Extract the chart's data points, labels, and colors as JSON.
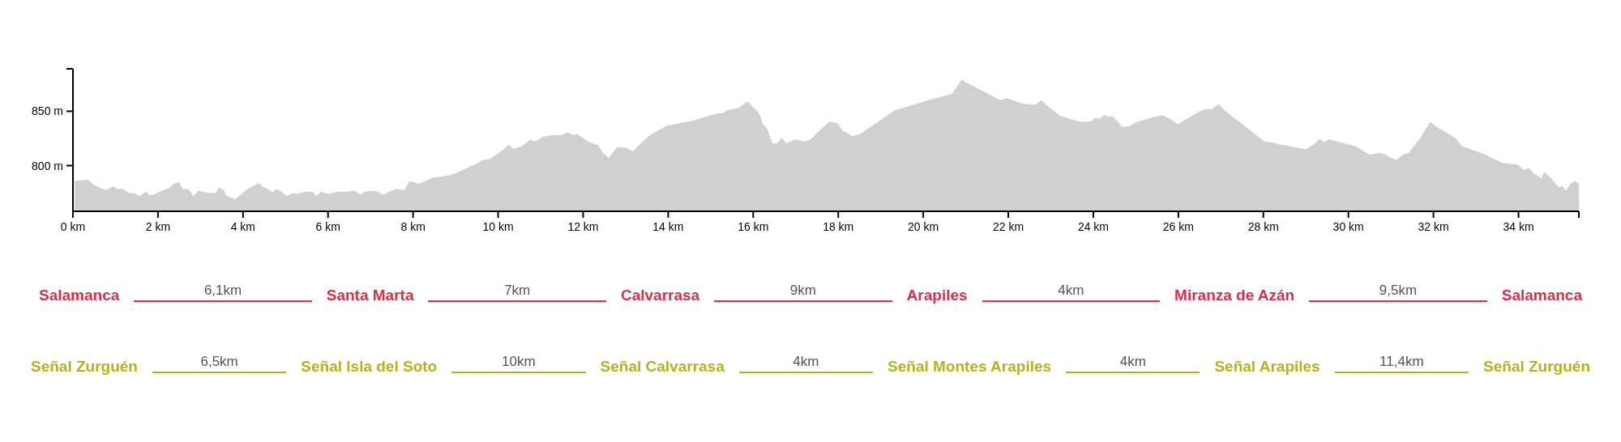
{
  "chart_data": {
    "type": "area",
    "color": "#d0d0d0",
    "x": [
      0.04,
      0.36,
      0.5,
      0.77,
      0.96,
      1.04,
      1.17,
      1.3,
      1.45,
      1.57,
      1.71,
      1.8,
      1.9,
      2.28,
      2.35,
      2.5,
      2.58,
      2.71,
      2.84,
      2.95,
      3.18,
      3.35,
      3.44,
      3.56,
      3.6,
      3.82,
      3.95,
      4.08,
      4.38,
      4.44,
      4.63,
      4.69,
      4.78,
      4.91,
      5.02,
      5.19,
      5.29,
      5.44,
      5.63,
      5.73,
      5.83,
      6.0,
      6.26,
      6.47,
      6.6,
      6.77,
      6.88,
      7.07,
      7.18,
      7.28,
      7.45,
      7.6,
      7.79,
      7.92,
      8.05,
      8.11,
      8.48,
      8.86,
      9.12,
      9.38,
      9.46,
      9.63,
      9.8,
      10.06,
      10.25,
      10.36,
      10.57,
      10.76,
      10.87,
      11.04,
      11.26,
      11.48,
      11.63,
      11.78,
      11.86,
      12.12,
      12.25,
      12.35,
      12.46,
      12.6,
      12.8,
      13.02,
      13.17,
      13.36,
      13.57,
      13.96,
      14.6,
      15.15,
      15.28,
      15.39,
      15.65,
      15.87,
      16.14,
      16.22,
      16.33,
      16.45,
      16.54,
      16.67,
      16.78,
      16.99,
      17.21,
      17.36,
      17.55,
      17.79,
      17.99,
      18.08,
      18.34,
      18.53,
      19.34,
      20.11,
      20.67,
      20.79,
      20.9,
      20.96,
      21.82,
      21.97,
      22.33,
      22.63,
      22.78,
      22.89,
      23.23,
      23.71,
      23.97,
      24.05,
      24.14,
      24.26,
      24.35,
      24.45,
      24.69,
      24.86,
      24.99,
      25.45,
      25.63,
      25.8,
      25.99,
      26.48,
      26.65,
      26.78,
      26.95,
      27.08,
      28.03,
      28.19,
      28.36,
      28.61,
      28.79,
      29.0,
      29.22,
      29.32,
      29.43,
      29.54,
      30.16,
      30.5,
      30.72,
      30.85,
      31.02,
      31.14,
      31.27,
      31.43,
      31.49,
      31.7,
      31.79,
      31.93,
      32.09,
      32.23,
      32.51,
      32.67,
      33.2,
      33.62,
      33.75,
      33.97,
      34.14,
      34.25,
      34.35,
      34.54,
      34.61,
      34.74,
      34.95,
      35.03,
      35.12,
      35.22,
      35.33,
      35.42
    ],
    "values": [
      786,
      787,
      782,
      777.5,
      781,
      778.5,
      779,
      775,
      774.5,
      772,
      776,
      773,
      773.5,
      780,
      783,
      785,
      778.5,
      778.5,
      772,
      777,
      775,
      774.5,
      780,
      777,
      772.5,
      769,
      773.5,
      778,
      784,
      781,
      777.5,
      775,
      778.5,
      776,
      772,
      775,
      774,
      776,
      776,
      772,
      776,
      774,
      776,
      776,
      777,
      773.5,
      776,
      777,
      776,
      773,
      776,
      778.5,
      777.5,
      786,
      784.5,
      783,
      789,
      791,
      795,
      800,
      801,
      805,
      806,
      813,
      819,
      815.5,
      818,
      824,
      822,
      826.5,
      828,
      828,
      830.5,
      828,
      829,
      822,
      820,
      819,
      812,
      807,
      817,
      816.5,
      813,
      820.5,
      828,
      836.5,
      841.5,
      848,
      848,
      851,
      853,
      859,
      848,
      839,
      834,
      820.5,
      820,
      825.5,
      820.5,
      824,
      822,
      824.5,
      832,
      840.5,
      839,
      833,
      827,
      829.5,
      851,
      860,
      866,
      872.5,
      879,
      877.5,
      860,
      862,
      857,
      856,
      860,
      856,
      845.5,
      840,
      841,
      844,
      843,
      846.5,
      845,
      845.5,
      835.5,
      836.5,
      839.5,
      845,
      846,
      843,
      838,
      849.5,
      852,
      852,
      856.5,
      851,
      822,
      821.5,
      819.5,
      818,
      816.5,
      815,
      820.5,
      824.5,
      821.5,
      824,
      818,
      810,
      811.5,
      810.5,
      806.5,
      805.5,
      810,
      812,
      815.5,
      825.5,
      832,
      840,
      835,
      832,
      825.5,
      818,
      810.5,
      802.5,
      802,
      801,
      796,
      798,
      793,
      788.5,
      794.5,
      789.5,
      780,
      781,
      777,
      783,
      786,
      783.5
    ],
    "xlim": [
      0,
      35.42
    ],
    "ylim": [
      758,
      889
    ],
    "xticks": [
      {
        "value": 0,
        "label": "0 km"
      },
      {
        "value": 2,
        "label": "2 km"
      },
      {
        "value": 4,
        "label": "4 km"
      },
      {
        "value": 6,
        "label": "6 km"
      },
      {
        "value": 8,
        "label": "8 km"
      },
      {
        "value": 10,
        "label": "10 km"
      },
      {
        "value": 12,
        "label": "12 km"
      },
      {
        "value": 14,
        "label": "14 km"
      },
      {
        "value": 16,
        "label": "16 km"
      },
      {
        "value": 18,
        "label": "18 km"
      },
      {
        "value": 20,
        "label": "20 km"
      },
      {
        "value": 22,
        "label": "22 km"
      },
      {
        "value": 24,
        "label": "24 km"
      },
      {
        "value": 26,
        "label": "26 km"
      },
      {
        "value": 28,
        "label": "28 km"
      },
      {
        "value": 30,
        "label": "30 km"
      },
      {
        "value": 32,
        "label": "32 km"
      },
      {
        "value": 34,
        "label": "34 km"
      }
    ],
    "yticks": [
      {
        "value": 800,
        "label": "800 m"
      },
      {
        "value": 850,
        "label": "850 m"
      }
    ],
    "annotations": [
      "Salamanca",
      "6,1km",
      "Santa Marta",
      "7km",
      "Calvarrasa",
      "9km",
      "Arapiles",
      "4km",
      "Miranza de Azán",
      "9,5km",
      "Salamanca",
      "Señal Zurguén",
      "6,5km",
      "Señal Isla del Soto",
      "10km",
      "Señal Calvarrasa",
      "4km",
      "Señal Montes Arapiles",
      "4km",
      "Señal Arapiles",
      "11,4km",
      "Señal Zurguén"
    ]
  }
}
